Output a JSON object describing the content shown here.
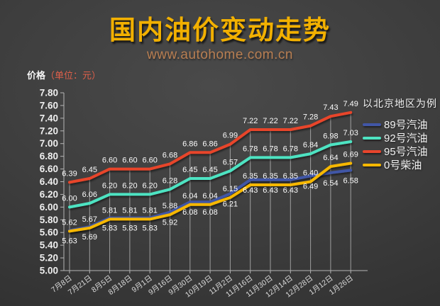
{
  "header": {
    "title": "国内油价变动走势",
    "subtitle": "www.autohome.com.cn"
  },
  "y_axis_title": {
    "text": "价格",
    "unit": "（单位：元）"
  },
  "chart_data": {
    "type": "line",
    "title": "国内油价变动走势",
    "legend_title": "以北京地区为例",
    "legend_position": "right",
    "grid": "vertical-drop-lines",
    "ylim": [
      5.0,
      7.8
    ],
    "ytick_step": 0.2,
    "ytick_labels": [
      "5.00",
      "5.20",
      "5.40",
      "5.60",
      "5.80",
      "6.00",
      "6.20",
      "6.40",
      "6.60",
      "6.80",
      "7.00",
      "7.20",
      "7.40",
      "7.60",
      "7.80"
    ],
    "x_labels": [
      "7月8日",
      "7月21日",
      "8月5日",
      "8月18日",
      "9月1日",
      "9月16日",
      "9月30日",
      "10月19日",
      "11月2日",
      "11月16日",
      "11月30日",
      "12月14日",
      "12月28日",
      "1月12日",
      "1月26日"
    ],
    "series": [
      {
        "name": "89号汽油",
        "color": "#4156a6",
        "label_side": "below",
        "values": [
          5.63,
          5.69,
          5.83,
          5.83,
          5.83,
          5.92,
          6.08,
          6.08,
          6.21,
          6.43,
          6.43,
          6.43,
          6.49,
          6.54,
          6.58
        ]
      },
      {
        "name": "92号汽油",
        "color": "#4ee3c2",
        "label_side": "above",
        "values": [
          6.0,
          6.06,
          6.2,
          6.2,
          6.2,
          6.28,
          6.45,
          6.45,
          6.57,
          6.78,
          6.78,
          6.78,
          6.84,
          6.98,
          7.03
        ]
      },
      {
        "name": "95号汽油",
        "color": "#e8452c",
        "label_side": "above",
        "values": [
          6.39,
          6.45,
          6.6,
          6.6,
          6.6,
          6.68,
          6.86,
          6.86,
          6.99,
          7.22,
          7.22,
          7.22,
          7.28,
          7.43,
          7.49
        ]
      },
      {
        "name": "0号柴油",
        "color": "#f6b700",
        "label_side": "above",
        "values": [
          5.62,
          5.67,
          5.81,
          5.81,
          5.81,
          5.88,
          6.04,
          6.04,
          6.15,
          6.35,
          6.35,
          6.35,
          6.4,
          6.64,
          6.69
        ]
      }
    ],
    "top_series_for_droplines": "95号汽油"
  },
  "colors": {
    "title": "#f2b000",
    "subtitle": "#b97f52",
    "unit_text": "#e0604a",
    "axis": "#b5b5b5",
    "ytick_text": "#efefef",
    "xtick_text": "#d8d8d8",
    "value_label_text": "#fcfcfc",
    "gridline": "rgba(255,255,255,0.5)"
  }
}
